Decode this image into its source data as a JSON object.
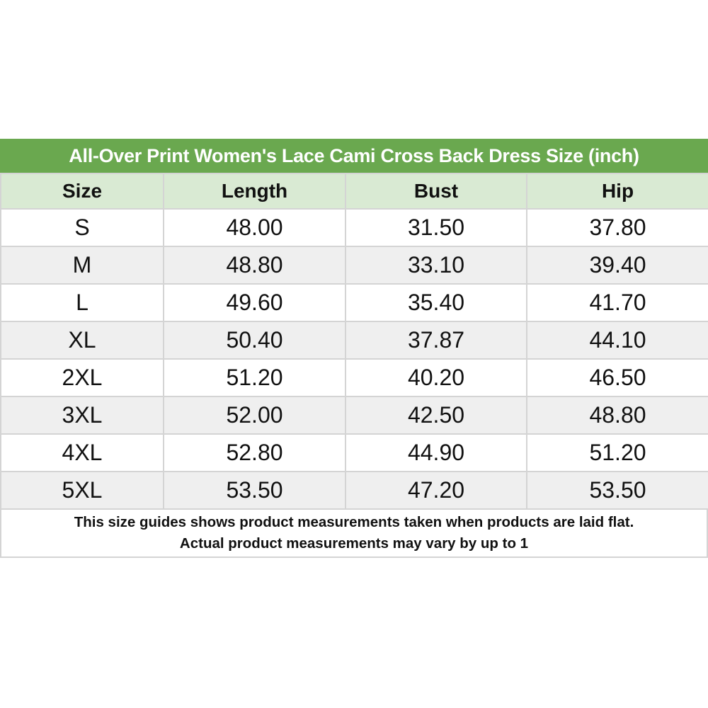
{
  "title": "All-Over Print Women's Lace Cami Cross Back Dress Size (inch)",
  "columns": [
    "Size",
    "Length",
    "Bust",
    "Hip"
  ],
  "rows": [
    [
      "S",
      "48.00",
      "31.50",
      "37.80"
    ],
    [
      "M",
      "48.80",
      "33.10",
      "39.40"
    ],
    [
      "L",
      "49.60",
      "35.40",
      "41.70"
    ],
    [
      "XL",
      "50.40",
      "37.87",
      "44.10"
    ],
    [
      "2XL",
      "51.20",
      "40.20",
      "46.50"
    ],
    [
      "3XL",
      "52.00",
      "42.50",
      "48.80"
    ],
    [
      "4XL",
      "52.80",
      "44.90",
      "51.20"
    ],
    [
      "5XL",
      "53.50",
      "47.20",
      "53.50"
    ]
  ],
  "footer": [
    "This size guides shows product measurements taken when products are laid flat.",
    "Actual product measurements may vary by up to 1"
  ],
  "colors": {
    "title_bg": "#6aa84f",
    "header_bg": "#d9ead3",
    "alt_row_bg": "#efefef"
  }
}
